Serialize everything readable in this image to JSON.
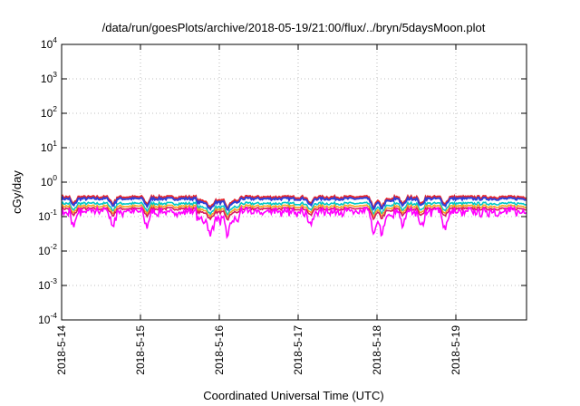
{
  "chart_data": {
    "type": "line",
    "title": "/data/run/goesPlots/archive/2018-05-19/21:00/flux/../bryn/5daysMoon.plot",
    "xlabel": "Coordinated Universal Time (UTC)",
    "ylabel": "cGy/day",
    "yscale": "log",
    "ylim": [
      0.0001,
      10000
    ],
    "xlim": [
      "2018-05-14",
      "2018-05-19 21:00"
    ],
    "grid": true,
    "legend": "none",
    "x_ticks": [
      "2018-5-14",
      "2018-5-15",
      "2018-5-16",
      "2018-5-17",
      "2018-5-18",
      "2018-5-19"
    ],
    "y_ticks": [
      {
        "base": "10",
        "exp": "-4"
      },
      {
        "base": "10",
        "exp": "-3"
      },
      {
        "base": "10",
        "exp": "-2"
      },
      {
        "base": "10",
        "exp": "-1"
      },
      {
        "base": "10",
        "exp": "0"
      },
      {
        "base": "10",
        "exp": "1"
      },
      {
        "base": "10",
        "exp": "2"
      },
      {
        "base": "10",
        "exp": "3"
      },
      {
        "base": "10",
        "exp": "4"
      }
    ],
    "series": [
      {
        "color": "#ff00ff",
        "baseline": 0.14,
        "values_note": "fluctuates 0.05–0.16 with dips"
      },
      {
        "color": "#d81b60",
        "baseline": 0.17
      },
      {
        "color": "#f5a623",
        "baseline": 0.2
      },
      {
        "color": "#00c8c8",
        "baseline": 0.24
      },
      {
        "color": "#2f3fd8",
        "baseline": 0.33
      },
      {
        "color": "#e8262a",
        "baseline": 0.37
      }
    ]
  }
}
